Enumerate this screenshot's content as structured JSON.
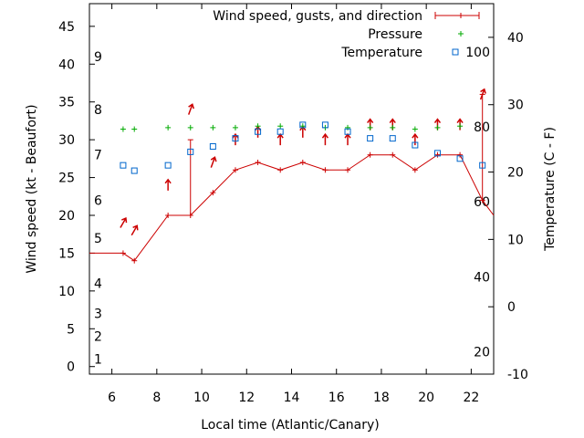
{
  "chart_data": {
    "type": "line",
    "title": "",
    "xlabel": "Local time (Atlantic/Canary)",
    "ylabel_left": "Wind speed (kt - Beaufort)",
    "ylabel_right": "Temperature (C - F)",
    "xlim": [
      5,
      23
    ],
    "ylim_left": [
      -1,
      48
    ],
    "ylim_right": [
      -10,
      45
    ],
    "x_ticks": [
      6,
      8,
      10,
      12,
      14,
      16,
      18,
      20,
      22
    ],
    "y_ticks_left": [
      0,
      5,
      10,
      15,
      20,
      25,
      30,
      35,
      40,
      45
    ],
    "y_ticks_right": [
      -10,
      0,
      10,
      20,
      30,
      40
    ],
    "beaufort_labels": [
      {
        "label": "1",
        "kt": 1
      },
      {
        "label": "2",
        "kt": 4
      },
      {
        "label": "3",
        "kt": 7
      },
      {
        "label": "4",
        "kt": 11
      },
      {
        "label": "5",
        "kt": 17
      },
      {
        "label": "6",
        "kt": 22
      },
      {
        "label": "7",
        "kt": 28
      },
      {
        "label": "8",
        "kt": 34
      },
      {
        "label": "9",
        "kt": 41
      }
    ],
    "fahrenheit_labels": [
      {
        "label": "20",
        "c": -6.7
      },
      {
        "label": "40",
        "c": 4.4
      },
      {
        "label": "60",
        "c": 15.6
      },
      {
        "label": "80",
        "c": 26.7
      },
      {
        "label": "100",
        "c": 37.8
      }
    ],
    "grid": false,
    "legend_position": "top-right",
    "legend": {
      "wind": "Wind speed, gusts, and direction",
      "pressure": "Pressure",
      "temperature": "Temperature"
    },
    "colors": {
      "wind": "#cc0000",
      "pressure": "#00aa00",
      "temperature": "#0066cc"
    },
    "wind_speed": {
      "x": [
        5,
        6.5,
        7,
        8.5,
        9.5,
        10.5,
        11.5,
        12.5,
        13.5,
        14.5,
        15.5,
        16.5,
        17.5,
        18.5,
        19.5,
        20.5,
        21.5,
        22.5,
        23
      ],
      "y": [
        15,
        15,
        14,
        20,
        20,
        23,
        26,
        27,
        26,
        27,
        26,
        26,
        28,
        28,
        26,
        28,
        28,
        22,
        20
      ]
    },
    "gusts": [
      {
        "x": 9.5,
        "from": 20,
        "to": 30
      },
      {
        "x": 22.5,
        "from": 22,
        "to": 36
      }
    ],
    "wind_direction_arrows": {
      "x": [
        6.5,
        7,
        8.5,
        9.5,
        10.5,
        11.5,
        12.5,
        13.5,
        14.5,
        15.5,
        16.5,
        17.5,
        18.5,
        19.5,
        20.5,
        21.5,
        22.5
      ],
      "y": [
        19,
        18,
        24,
        34,
        27,
        30,
        31,
        30,
        31,
        30,
        30,
        32,
        32,
        30,
        32,
        32,
        36
      ],
      "bearing_deg": [
        210,
        210,
        180,
        200,
        200,
        180,
        180,
        180,
        180,
        180,
        180,
        180,
        180,
        180,
        180,
        180,
        200
      ]
    },
    "pressure": {
      "x": [
        6.5,
        7,
        8.5,
        9.5,
        10.5,
        11.5,
        12.5,
        13.5,
        14.5,
        15.5,
        16.5,
        17.5,
        18.5,
        19.5,
        20.5,
        21.5
      ],
      "y": [
        31.4,
        31.4,
        31.6,
        31.6,
        31.6,
        31.6,
        31.8,
        31.8,
        31.8,
        31.6,
        31.6,
        31.6,
        31.6,
        31.4,
        31.6,
        31.8
      ]
    },
    "temperature": {
      "x": [
        6.5,
        7,
        8.5,
        9.5,
        10.5,
        11.5,
        12.5,
        13.5,
        14.5,
        15.5,
        16.5,
        17.5,
        18.5,
        19.5,
        20.5,
        21.5,
        22.5
      ],
      "y": [
        21,
        20.2,
        21,
        23,
        23.8,
        25,
        26,
        26,
        27,
        27,
        26,
        25,
        25,
        24,
        22.8,
        22,
        21
      ]
    }
  }
}
